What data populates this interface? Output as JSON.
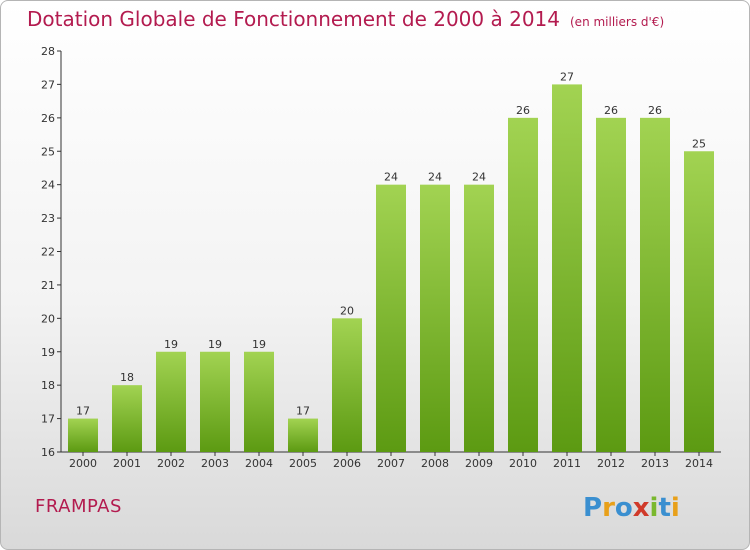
{
  "title": "Dotation Globale de Fonctionnement de 2000 à 2014",
  "unit": "(en milliers d'€)",
  "commune": "FRAMPAS",
  "logo_text": "Proxiti",
  "colors": {
    "title": "#b31b4f",
    "bar_top": "#a2d352",
    "bar_bottom": "#5c9a12",
    "axis": "#333333",
    "grid_tick": "#333333"
  },
  "chart_data": {
    "type": "bar",
    "title": "Dotation Globale de Fonctionnement de 2000 à 2014",
    "categories": [
      "2000",
      "2001",
      "2002",
      "2003",
      "2004",
      "2005",
      "2006",
      "2007",
      "2008",
      "2009",
      "2010",
      "2011",
      "2012",
      "2013",
      "2014"
    ],
    "values": [
      17,
      18,
      19,
      19,
      19,
      17,
      20,
      24,
      24,
      24,
      26,
      27,
      26,
      26,
      25
    ],
    "ylim": [
      16,
      28
    ],
    "yticks": [
      16,
      17,
      18,
      19,
      20,
      21,
      22,
      23,
      24,
      25,
      26,
      27,
      28
    ],
    "xlabel": "",
    "ylabel": "",
    "grid": false,
    "legend": "none"
  }
}
